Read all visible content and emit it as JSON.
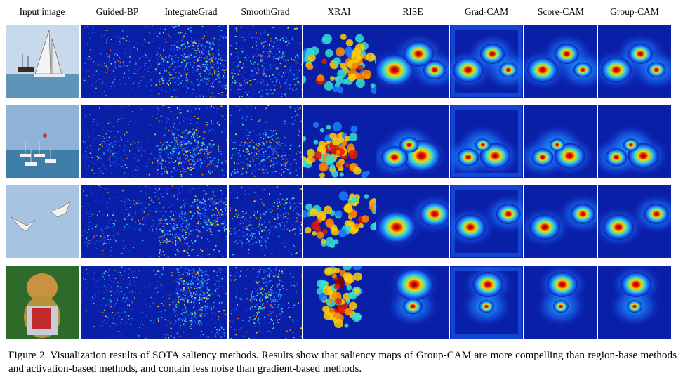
{
  "figure": {
    "columns": [
      "Input image",
      "Guided-BP",
      "IntegrateGrad",
      "SmoothGrad",
      "XRAI",
      "RISE",
      "Grad-CAM",
      "Score-CAM",
      "Group-CAM"
    ],
    "rows": [
      "sailboats",
      "boats-at-sea",
      "birds-in-flight",
      "golden-retriever"
    ],
    "caption": "Figure 2. Visualization results of SOTA saliency methods. Results show that saliency maps of Group-CAM are more compelling than region-base methods and activation-based methods, and contain less noise than gradient-based methods.",
    "colors": {
      "map_bg": "#0a1fa8",
      "sky": "#a9c4e0",
      "sea": "#5a8fb6",
      "grass": "#2e6b2a"
    }
  }
}
